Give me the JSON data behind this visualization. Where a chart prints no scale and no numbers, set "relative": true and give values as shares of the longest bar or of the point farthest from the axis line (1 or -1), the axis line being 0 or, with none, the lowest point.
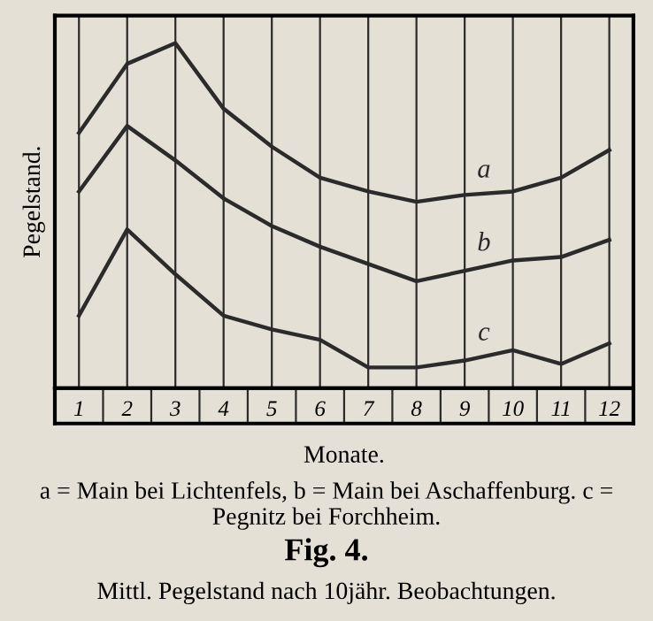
{
  "chart_data": {
    "type": "line",
    "relative": true,
    "title": "Fig. 4.",
    "subtitle": "Mittl. Pegelstand nach 10jähr. Beobachtungen.",
    "xlabel": "Monate.",
    "ylabel": "Pegelstand.",
    "annotations": [
      "a = Main bei Lichtenfels, b = Main bei Aschaffenburg. c = Pegnitz bei Forchheim."
    ],
    "categories": [
      "1",
      "2",
      "3",
      "4",
      "5",
      "6",
      "7",
      "8",
      "9",
      "10",
      "11",
      "12"
    ],
    "grid": "x",
    "marker": "none",
    "line_style": "solid",
    "series": [
      {
        "name": "a",
        "color": "#2b2b2b",
        "values": [
          0.74,
          0.94,
          1.0,
          0.81,
          0.7,
          0.61,
          0.57,
          0.54,
          0.56,
          0.57,
          0.61,
          0.69
        ]
      },
      {
        "name": "b",
        "color": "#2b2b2b",
        "values": [
          0.57,
          0.76,
          0.66,
          0.55,
          0.47,
          0.41,
          0.36,
          0.31,
          0.34,
          0.37,
          0.38,
          0.43
        ]
      },
      {
        "name": "c",
        "color": "#2b2b2b",
        "values": [
          0.21,
          0.46,
          0.33,
          0.21,
          0.17,
          0.14,
          0.06,
          0.06,
          0.08,
          0.11,
          0.07,
          0.13
        ]
      }
    ]
  }
}
